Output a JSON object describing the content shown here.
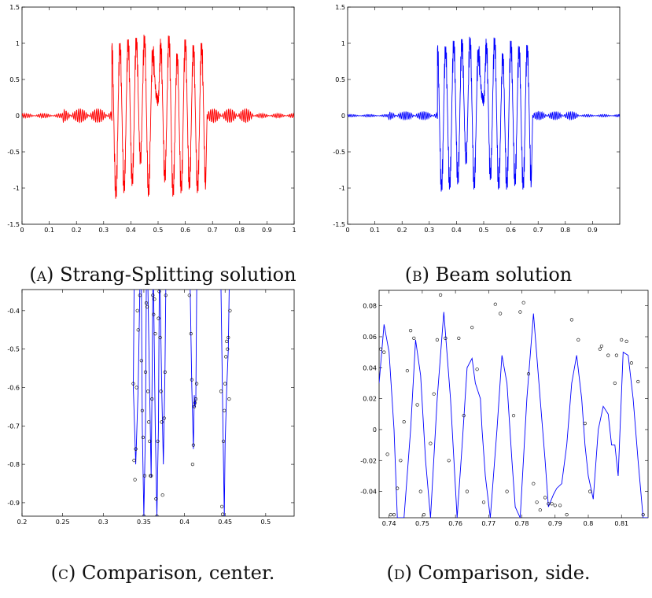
{
  "chart_data": [
    {
      "type": "line",
      "panel": "a",
      "caption_letter": "(a)",
      "caption_text": "Strang-Splitting solution",
      "xlim": [
        0,
        1
      ],
      "ylim": [
        -1.5,
        1.5
      ],
      "x_ticks": [
        0,
        0.1,
        0.2,
        0.3,
        0.4,
        0.5,
        0.6,
        0.7,
        0.8,
        0.9,
        1
      ],
      "x_tick_labels": [
        "0",
        "0.1",
        "0.2",
        "0.3",
        "0.4",
        "0.5",
        "0.6",
        "0.7",
        "0.8",
        "0.9",
        "1"
      ],
      "y_ticks": [
        -1.5,
        -1,
        -0.5,
        0,
        0.5,
        1,
        1.5
      ],
      "y_tick_labels": [
        "-1.5",
        "-1",
        "-0.5",
        "0",
        "0.5",
        "1",
        "1.5"
      ],
      "grid": false,
      "series": [
        {
          "color": "#ff0000",
          "envelope": [
            [
              0.33,
              0.95
            ],
            [
              0.345,
              -1.08
            ],
            [
              0.36,
              0.95
            ],
            [
              0.375,
              -1.0
            ],
            [
              0.39,
              1.0
            ],
            [
              0.405,
              -0.9
            ],
            [
              0.42,
              1.02
            ],
            [
              0.435,
              -0.6
            ],
            [
              0.45,
              1.05
            ],
            [
              0.465,
              -1.05
            ],
            [
              0.48,
              0.85
            ],
            [
              0.495,
              0.25
            ],
            [
              0.5,
              0.2
            ],
            [
              0.51,
              0.95
            ],
            [
              0.525,
              -0.85
            ],
            [
              0.54,
              1.05
            ],
            [
              0.555,
              -1.05
            ],
            [
              0.57,
              0.8
            ],
            [
              0.585,
              -1.0
            ],
            [
              0.6,
              1.0
            ],
            [
              0.615,
              -0.95
            ],
            [
              0.63,
              0.92
            ],
            [
              0.645,
              -1.0
            ],
            [
              0.66,
              0.95
            ],
            [
              0.675,
              -0.95
            ]
          ],
          "noise_amplitude_side": 0.1
        }
      ]
    },
    {
      "type": "line",
      "panel": "b",
      "caption_letter": "(b)",
      "caption_text": "Beam solution",
      "xlim": [
        0,
        1
      ],
      "ylim": [
        -1.5,
        1.5
      ],
      "x_ticks": [
        0,
        0.1,
        0.2,
        0.3,
        0.4,
        0.5,
        0.6,
        0.7,
        0.8,
        0.9
      ],
      "x_tick_labels": [
        "0",
        "0.1",
        "0.2",
        "0.3",
        "0.4",
        "0.5",
        "0.6",
        "0.7",
        "0.8",
        "0.9"
      ],
      "y_ticks": [
        -1.5,
        -1,
        -0.5,
        0,
        0.5,
        1,
        1.5
      ],
      "y_tick_labels": [
        "-1.5",
        "-1",
        "-0.5",
        "0",
        "0.5",
        "1",
        "1.5"
      ],
      "grid": false,
      "series": [
        {
          "color": "#0000ff",
          "envelope": [
            [
              0.33,
              0.92
            ],
            [
              0.345,
              -0.98
            ],
            [
              0.36,
              0.9
            ],
            [
              0.375,
              -0.95
            ],
            [
              0.39,
              0.98
            ],
            [
              0.405,
              -0.88
            ],
            [
              0.42,
              1.0
            ],
            [
              0.435,
              -0.6
            ],
            [
              0.45,
              1.02
            ],
            [
              0.465,
              -0.95
            ],
            [
              0.48,
              0.85
            ],
            [
              0.495,
              0.25
            ],
            [
              0.5,
              0.2
            ],
            [
              0.51,
              0.95
            ],
            [
              0.525,
              -0.82
            ],
            [
              0.54,
              1.02
            ],
            [
              0.555,
              -0.95
            ],
            [
              0.57,
              0.8
            ],
            [
              0.585,
              -0.95
            ],
            [
              0.6,
              0.98
            ],
            [
              0.615,
              -0.9
            ],
            [
              0.63,
              0.9
            ],
            [
              0.645,
              -0.95
            ],
            [
              0.66,
              0.92
            ],
            [
              0.675,
              -0.92
            ]
          ],
          "noise_amplitude_side": 0.06
        }
      ]
    },
    {
      "type": "line",
      "panel": "c",
      "caption_letter": "(c)",
      "caption_text": "Comparison, center.",
      "xlim": [
        0.2,
        0.535
      ],
      "ylim": [
        -0.935,
        -0.345
      ],
      "x_ticks": [
        0.2,
        0.25,
        0.3,
        0.35,
        0.4,
        0.45,
        0.5
      ],
      "x_tick_labels": [
        "0.2",
        "0.25",
        "0.3",
        "0.35",
        "0.4",
        "0.45",
        "0.5"
      ],
      "y_ticks": [
        -0.9,
        -0.8,
        -0.7,
        -0.6,
        -0.5,
        -0.4
      ],
      "y_tick_labels": [
        "-0.9",
        "-0.8",
        "-0.7",
        "-0.6",
        "-0.5",
        "-0.4"
      ],
      "grid": false,
      "line_color": "#0000ff",
      "line_segments": [
        [
          [
            0.338,
            -0.345
          ],
          [
            0.337,
            -0.6
          ],
          [
            0.34,
            -0.8
          ],
          [
            0.343,
            -0.6
          ],
          [
            0.345,
            -0.345
          ]
        ],
        [
          [
            0.347,
            -0.345
          ],
          [
            0.348,
            -0.7
          ],
          [
            0.35,
            -0.935
          ],
          [
            0.352,
            -0.7
          ],
          [
            0.353,
            -0.345
          ]
        ],
        [
          [
            0.355,
            -0.345
          ],
          [
            0.357,
            -0.6
          ],
          [
            0.359,
            -0.835
          ],
          [
            0.36,
            -0.6
          ],
          [
            0.361,
            -0.345
          ]
        ],
        [
          [
            0.362,
            -0.345
          ],
          [
            0.364,
            -0.7
          ],
          [
            0.366,
            -0.935
          ],
          [
            0.368,
            -0.7
          ],
          [
            0.369,
            -0.345
          ]
        ],
        [
          [
            0.37,
            -0.345
          ],
          [
            0.372,
            -0.6
          ],
          [
            0.374,
            -0.8
          ],
          [
            0.376,
            -0.55
          ],
          [
            0.377,
            -0.345
          ]
        ],
        [
          [
            0.407,
            -0.345
          ],
          [
            0.409,
            -0.6
          ],
          [
            0.411,
            -0.76
          ],
          [
            0.412,
            -0.62
          ],
          [
            0.413,
            -0.65
          ],
          [
            0.414,
            -0.63
          ],
          [
            0.415,
            -0.345
          ]
        ],
        [
          [
            0.445,
            -0.345
          ],
          [
            0.447,
            -0.65
          ],
          [
            0.449,
            -0.935
          ],
          [
            0.45,
            -0.75
          ],
          [
            0.452,
            -0.6
          ],
          [
            0.454,
            -0.5
          ],
          [
            0.455,
            -0.345
          ]
        ]
      ],
      "markers": [
        [
          0.337,
          -0.59
        ],
        [
          0.338,
          -0.79
        ],
        [
          0.339,
          -0.84
        ],
        [
          0.34,
          -0.76
        ],
        [
          0.341,
          -0.6
        ],
        [
          0.342,
          -0.4
        ],
        [
          0.343,
          -0.45
        ],
        [
          0.345,
          -0.36
        ],
        [
          0.347,
          -0.53
        ],
        [
          0.348,
          -0.66
        ],
        [
          0.349,
          -0.73
        ],
        [
          0.35,
          -0.935
        ],
        [
          0.351,
          -0.83
        ],
        [
          0.352,
          -0.56
        ],
        [
          0.353,
          -0.38
        ],
        [
          0.354,
          -0.39
        ],
        [
          0.355,
          -0.61
        ],
        [
          0.356,
          -0.69
        ],
        [
          0.357,
          -0.74
        ],
        [
          0.358,
          -0.83
        ],
        [
          0.359,
          -0.83
        ],
        [
          0.36,
          -0.63
        ],
        [
          0.361,
          -0.36
        ],
        [
          0.362,
          -0.41
        ],
        [
          0.363,
          -0.37
        ],
        [
          0.364,
          -0.46
        ],
        [
          0.365,
          -0.89
        ],
        [
          0.366,
          -0.935
        ],
        [
          0.367,
          -0.74
        ],
        [
          0.368,
          -0.42
        ],
        [
          0.369,
          -0.35
        ],
        [
          0.37,
          -0.47
        ],
        [
          0.371,
          -0.61
        ],
        [
          0.372,
          -0.69
        ],
        [
          0.373,
          -0.88
        ],
        [
          0.375,
          -0.68
        ],
        [
          0.376,
          -0.56
        ],
        [
          0.377,
          -0.36
        ],
        [
          0.406,
          -0.36
        ],
        [
          0.408,
          -0.46
        ],
        [
          0.409,
          -0.58
        ],
        [
          0.41,
          -0.8
        ],
        [
          0.411,
          -0.75
        ],
        [
          0.412,
          -0.65
        ],
        [
          0.413,
          -0.64
        ],
        [
          0.414,
          -0.63
        ],
        [
          0.415,
          -0.59
        ],
        [
          0.445,
          -0.61
        ],
        [
          0.446,
          -0.91
        ],
        [
          0.447,
          -0.93
        ],
        [
          0.448,
          -0.74
        ],
        [
          0.449,
          -0.66
        ],
        [
          0.45,
          -0.59
        ],
        [
          0.451,
          -0.52
        ],
        [
          0.452,
          -0.48
        ],
        [
          0.453,
          -0.5
        ],
        [
          0.454,
          -0.47
        ],
        [
          0.455,
          -0.63
        ],
        [
          0.456,
          -0.4
        ]
      ]
    },
    {
      "type": "line",
      "panel": "d",
      "caption_letter": "(d)",
      "caption_text": "Comparison, side.",
      "xlim": [
        0.737,
        0.818
      ],
      "ylim": [
        -0.057,
        0.09
      ],
      "x_ticks": [
        0.74,
        0.75,
        0.76,
        0.77,
        0.78,
        0.79,
        0.8,
        0.81
      ],
      "x_tick_labels": [
        "0.74",
        "0.75",
        "0.76",
        "0.77",
        "0.78",
        "0.79",
        "0.8",
        "0.81"
      ],
      "y_ticks": [
        -0.04,
        -0.02,
        0,
        0.02,
        0.04,
        0.06,
        0.08
      ],
      "y_tick_labels": [
        "-0.04",
        "-0.02",
        "0",
        "0.02",
        "0.04",
        "0.06",
        "0.08"
      ],
      "grid": false,
      "line_color": "#0000ff",
      "line_points": [
        [
          0.737,
          0.03
        ],
        [
          0.7385,
          0.068
        ],
        [
          0.74,
          0.05
        ],
        [
          0.7415,
          0.0
        ],
        [
          0.7425,
          -0.057
        ],
        [
          0.7445,
          -0.057
        ],
        [
          0.7465,
          0.0
        ],
        [
          0.748,
          0.058
        ],
        [
          0.7495,
          0.035
        ],
        [
          0.751,
          -0.02
        ],
        [
          0.7525,
          -0.057
        ],
        [
          0.7545,
          0.02
        ],
        [
          0.7565,
          0.076
        ],
        [
          0.7585,
          0.02
        ],
        [
          0.7605,
          -0.057
        ],
        [
          0.762,
          -0.01
        ],
        [
          0.7635,
          0.04
        ],
        [
          0.765,
          0.046
        ],
        [
          0.766,
          0.03
        ],
        [
          0.7675,
          0.02
        ],
        [
          0.768,
          0.0
        ],
        [
          0.769,
          -0.03
        ],
        [
          0.7705,
          -0.057
        ],
        [
          0.7725,
          0.0
        ],
        [
          0.774,
          0.048
        ],
        [
          0.7755,
          0.03
        ],
        [
          0.777,
          -0.02
        ],
        [
          0.778,
          -0.05
        ],
        [
          0.7795,
          -0.057
        ],
        [
          0.7815,
          0.02
        ],
        [
          0.7835,
          0.075
        ],
        [
          0.7855,
          0.02
        ],
        [
          0.787,
          -0.02
        ],
        [
          0.788,
          -0.05
        ],
        [
          0.7895,
          -0.042
        ],
        [
          0.7905,
          -0.038
        ],
        [
          0.792,
          -0.035
        ],
        [
          0.7935,
          -0.01
        ],
        [
          0.795,
          0.03
        ],
        [
          0.7965,
          0.048
        ],
        [
          0.798,
          0.02
        ],
        [
          0.799,
          -0.01
        ],
        [
          0.8,
          -0.03
        ],
        [
          0.8015,
          -0.045
        ],
        [
          0.803,
          0.0
        ],
        [
          0.8045,
          0.015
        ],
        [
          0.806,
          0.01
        ],
        [
          0.807,
          -0.01
        ],
        [
          0.808,
          -0.01
        ],
        [
          0.809,
          -0.03
        ],
        [
          0.8105,
          0.05
        ],
        [
          0.812,
          0.048
        ],
        [
          0.8135,
          0.02
        ],
        [
          0.815,
          -0.02
        ],
        [
          0.8165,
          -0.057
        ],
        [
          0.818,
          -0.057
        ]
      ],
      "markers": [
        [
          0.7375,
          0.052
        ],
        [
          0.7385,
          0.05
        ],
        [
          0.7395,
          -0.016
        ],
        [
          0.7405,
          -0.055
        ],
        [
          0.7415,
          -0.055
        ],
        [
          0.7425,
          -0.038
        ],
        [
          0.7435,
          -0.02
        ],
        [
          0.7445,
          0.005
        ],
        [
          0.7455,
          0.038
        ],
        [
          0.7465,
          0.064
        ],
        [
          0.7475,
          0.059
        ],
        [
          0.7485,
          0.016
        ],
        [
          0.7495,
          -0.04
        ],
        [
          0.7505,
          -0.055
        ],
        [
          0.7525,
          -0.009
        ],
        [
          0.7535,
          0.023
        ],
        [
          0.7545,
          0.058
        ],
        [
          0.7555,
          0.087
        ],
        [
          0.757,
          0.059
        ],
        [
          0.758,
          -0.02
        ],
        [
          0.761,
          0.059
        ],
        [
          0.7625,
          0.009
        ],
        [
          0.7635,
          -0.04
        ],
        [
          0.765,
          0.066
        ],
        [
          0.7665,
          0.039
        ],
        [
          0.7685,
          -0.047
        ],
        [
          0.772,
          0.081
        ],
        [
          0.7735,
          0.075
        ],
        [
          0.7755,
          -0.04
        ],
        [
          0.7775,
          0.009
        ],
        [
          0.7795,
          0.076
        ],
        [
          0.7805,
          0.082
        ],
        [
          0.782,
          0.036
        ],
        [
          0.7835,
          -0.035
        ],
        [
          0.7845,
          -0.047
        ],
        [
          0.7855,
          -0.052
        ],
        [
          0.787,
          -0.044
        ],
        [
          0.788,
          -0.048
        ],
        [
          0.789,
          -0.048
        ],
        [
          0.79,
          -0.049
        ],
        [
          0.7915,
          -0.049
        ],
        [
          0.7935,
          -0.055
        ],
        [
          0.795,
          0.071
        ],
        [
          0.797,
          0.058
        ],
        [
          0.799,
          0.004
        ],
        [
          0.8005,
          -0.04
        ],
        [
          0.8035,
          0.052
        ],
        [
          0.804,
          0.054
        ],
        [
          0.806,
          0.048
        ],
        [
          0.808,
          0.03
        ],
        [
          0.8085,
          0.048
        ],
        [
          0.81,
          0.058
        ],
        [
          0.8115,
          0.057
        ],
        [
          0.813,
          0.043
        ],
        [
          0.815,
          0.031
        ],
        [
          0.8165,
          -0.055
        ]
      ]
    }
  ]
}
